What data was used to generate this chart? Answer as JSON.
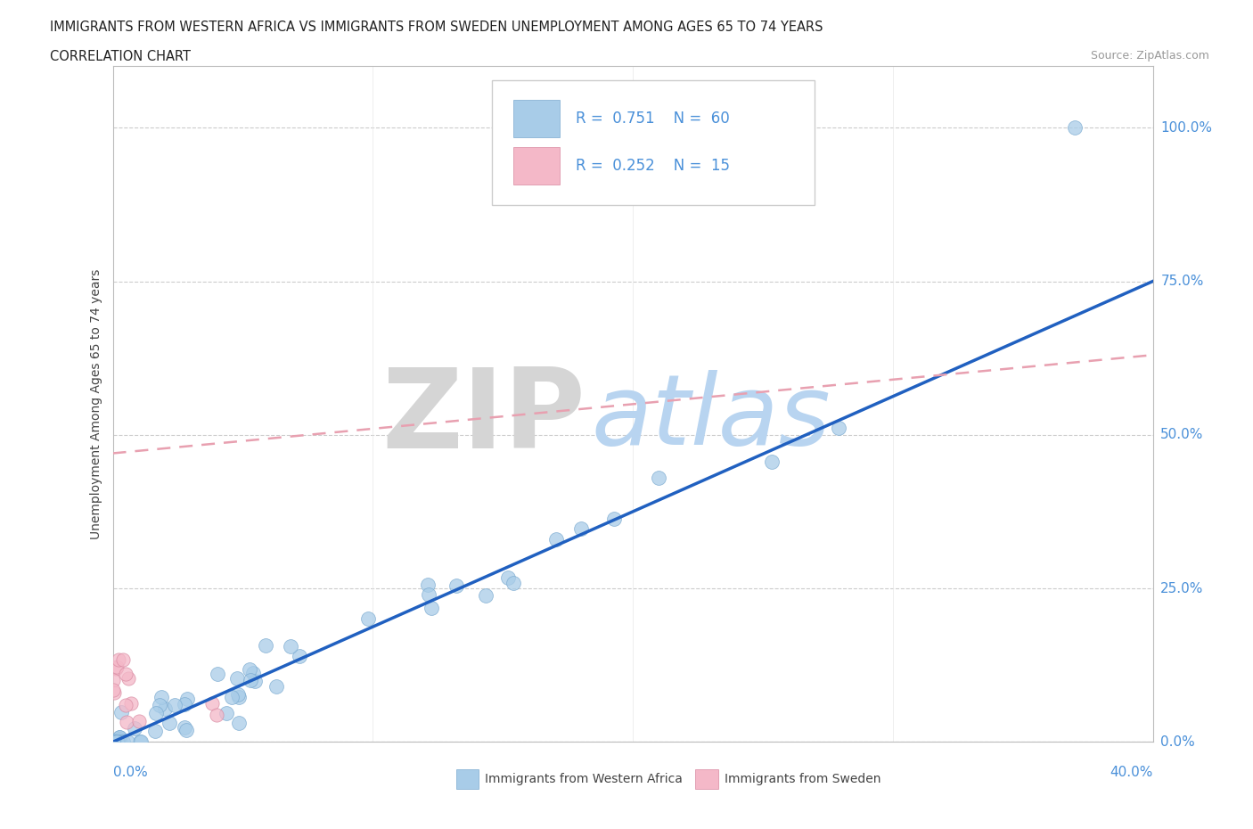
{
  "title_line1": "IMMIGRANTS FROM WESTERN AFRICA VS IMMIGRANTS FROM SWEDEN UNEMPLOYMENT AMONG AGES 65 TO 74 YEARS",
  "title_line2": "CORRELATION CHART",
  "source_text": "Source: ZipAtlas.com",
  "ylabel": "Unemployment Among Ages 65 to 74 years",
  "ytick_labels": [
    "0.0%",
    "25.0%",
    "50.0%",
    "75.0%",
    "100.0%"
  ],
  "ytick_values": [
    0.0,
    0.25,
    0.5,
    0.75,
    1.0
  ],
  "xlim": [
    0.0,
    0.4
  ],
  "ylim": [
    0.0,
    1.1
  ],
  "R_wa": 0.751,
  "N_wa": 60,
  "R_sw": 0.252,
  "N_sw": 15,
  "color_wa": "#a8cce8",
  "color_sw": "#f4b8c8",
  "color_line_wa": "#2060c0",
  "color_line_sw": "#e8a0b0",
  "watermark_zip": "ZIP",
  "watermark_atlas": "atlas",
  "watermark_zip_color": "#d8d8d8",
  "watermark_atlas_color": "#b8d4f0",
  "legend_label_wa": "Immigrants from Western Africa",
  "legend_label_sw": "Immigrants from Sweden",
  "wa_line_x0": 0.0,
  "wa_line_y0": 0.0,
  "wa_line_x1": 0.4,
  "wa_line_y1": 0.75,
  "sw_line_x0": 0.0,
  "sw_line_y0": 0.47,
  "sw_line_x1": 0.4,
  "sw_line_y1": 0.63
}
